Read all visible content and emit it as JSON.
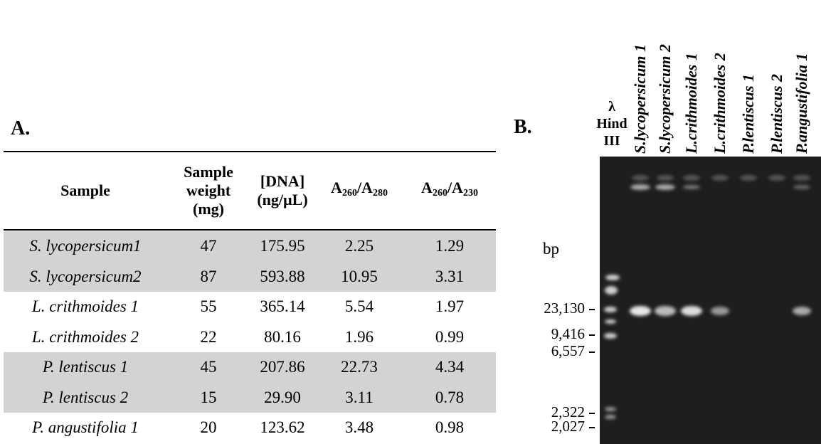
{
  "panel_a": {
    "label": "A.",
    "table": {
      "header": [
        {
          "lines": [
            "Sample"
          ]
        },
        {
          "lines": [
            "Sample",
            "weight",
            "(mg)"
          ]
        },
        {
          "lines": [
            "[DNA]",
            "(ng/µL)"
          ]
        },
        {
          "parts": [
            "A",
            "260",
            "/A",
            "280"
          ]
        },
        {
          "parts": [
            "A",
            "260",
            "/A",
            "230"
          ]
        }
      ],
      "rows": [
        [
          "S. lycopersicum1",
          "47",
          "175.95",
          "2.25",
          "1.29"
        ],
        [
          "S. lycopersicum2",
          "87",
          "593.88",
          "10.95",
          "3.31"
        ],
        [
          "L. crithmoides 1",
          "55",
          "365.14",
          "5.54",
          "1.97"
        ],
        [
          "L. crithmoides 2",
          "22",
          "80.16",
          "1.96",
          "0.99"
        ],
        [
          "P. lentiscus 1",
          "45",
          "207.86",
          "22.73",
          "4.34"
        ],
        [
          "P. lentiscus 2",
          "15",
          "29.90",
          "3.11",
          "0.78"
        ],
        [
          "P. angustifolia 1",
          "20",
          "123.62",
          "3.48",
          "0.98"
        ]
      ],
      "shaded_rows": [
        0,
        1,
        4,
        5
      ]
    }
  },
  "panel_b": {
    "label": "B.",
    "marker_label": [
      "λ",
      "Hind",
      "III"
    ],
    "lanes": [
      "S.lycopersicum 1",
      "S.lycopersicum 2",
      "L.crithmoides 1",
      "L.crithmoides 2",
      "P.lentiscus 1",
      "P.lentiscus 2",
      "P.angustifolia 1"
    ],
    "unit": "bp",
    "sizes": [
      "23,130",
      "9,416",
      "6,557",
      "2,322",
      "2,027"
    ]
  }
}
